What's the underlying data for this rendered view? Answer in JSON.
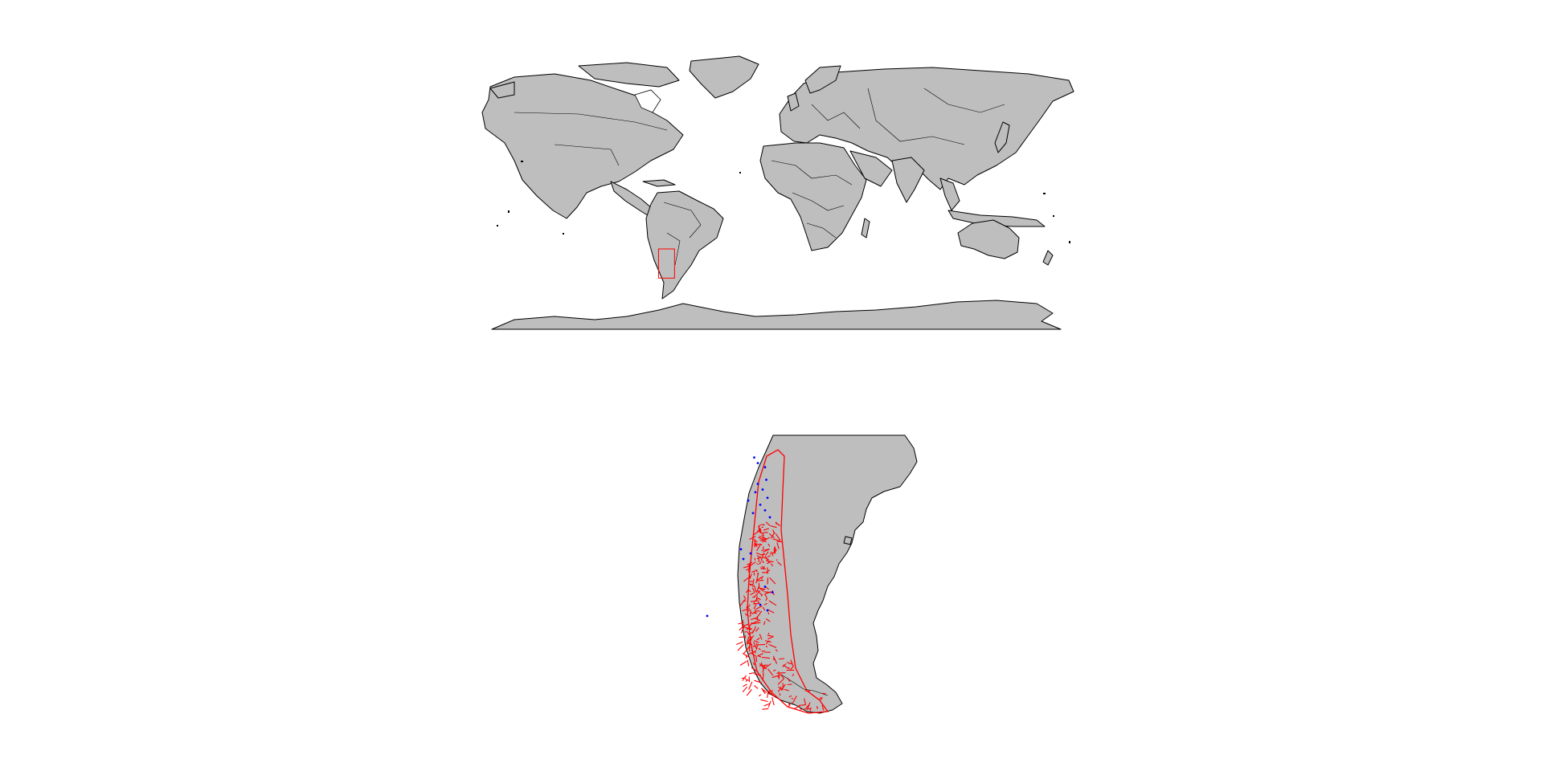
{
  "colors": {
    "background": "#ffffff",
    "land": "#bebebe",
    "outline": "#000000",
    "extent_box": "#ff0000",
    "range_polygon": "#ff0000",
    "coastline_fragments": "#ff0000",
    "occurrence_points": "#0000ff"
  },
  "world_map": {
    "type": "world-map",
    "extent_box": {
      "lon": [
        -76,
        -66
      ],
      "lat": [
        -56,
        -36
      ]
    }
  },
  "detail_map": {
    "type": "regional-map",
    "extent": {
      "lon": [
        -76,
        -66
      ],
      "lat": [
        -56,
        -36
      ]
    },
    "occurrence_points": [
      [
        -73.05,
        -37.6
      ],
      [
        -72.9,
        -38.0
      ],
      [
        -72.6,
        -38.3
      ],
      [
        -72.55,
        -39.2
      ],
      [
        -72.9,
        -39.5
      ],
      [
        -72.7,
        -39.9
      ],
      [
        -73.0,
        -40.1
      ],
      [
        -72.5,
        -40.5
      ],
      [
        -73.3,
        -40.7
      ],
      [
        -72.8,
        -41.0
      ],
      [
        -72.6,
        -41.4
      ],
      [
        -73.1,
        -41.6
      ],
      [
        -72.4,
        -41.9
      ],
      [
        -73.6,
        -44.2
      ],
      [
        -73.2,
        -44.5
      ],
      [
        -73.5,
        -44.9
      ],
      [
        -72.6,
        -46.9
      ],
      [
        -72.3,
        -47.3
      ],
      [
        -72.8,
        -48.2
      ],
      [
        -72.5,
        -48.6
      ],
      [
        -75.0,
        -49.0
      ]
    ]
  }
}
